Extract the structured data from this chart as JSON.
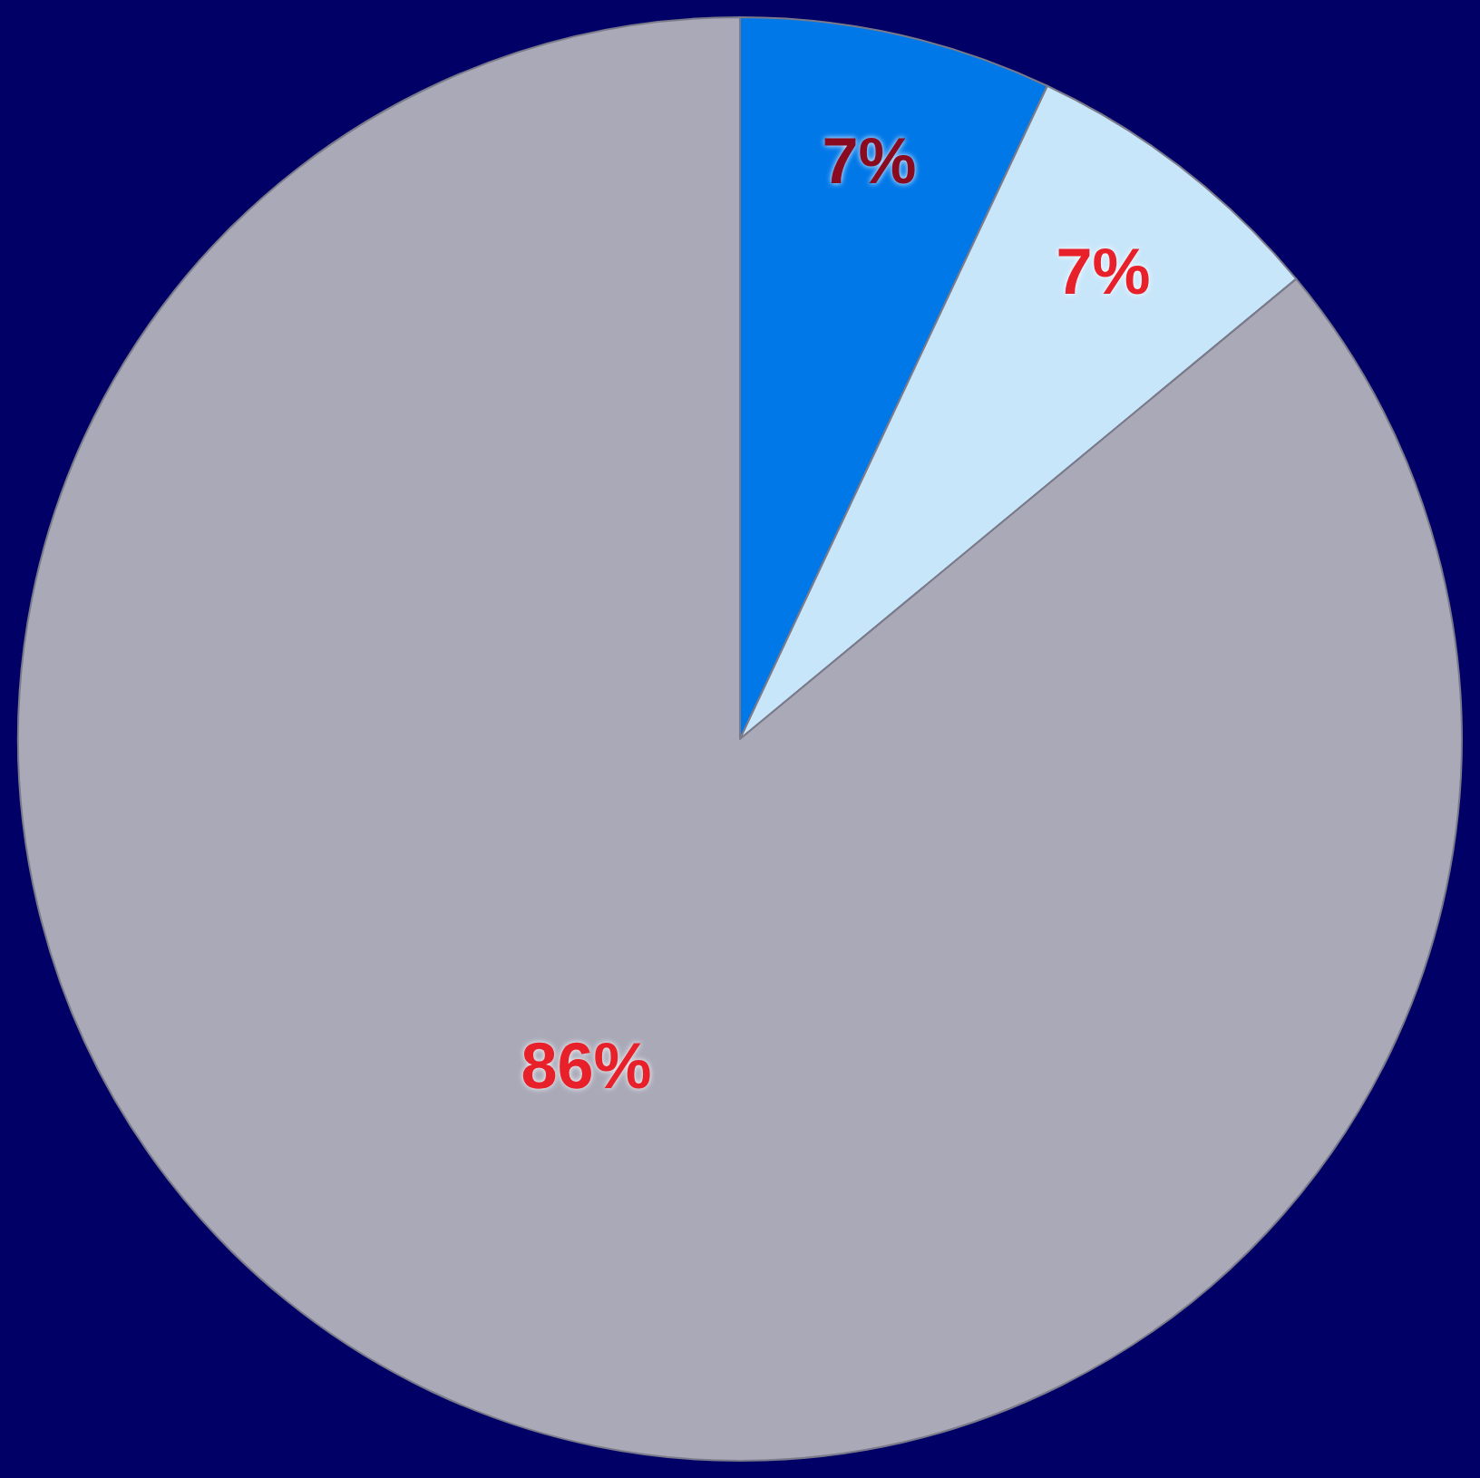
{
  "chart_data": {
    "type": "pie",
    "categories": [
      null,
      null,
      null
    ],
    "values": [
      7,
      7,
      86
    ],
    "colors": [
      "#0078e8",
      "#c8e6fa",
      "#a9a9b8"
    ],
    "value_labels": [
      "7%",
      "7%",
      "86%"
    ],
    "legend": false
  }
}
